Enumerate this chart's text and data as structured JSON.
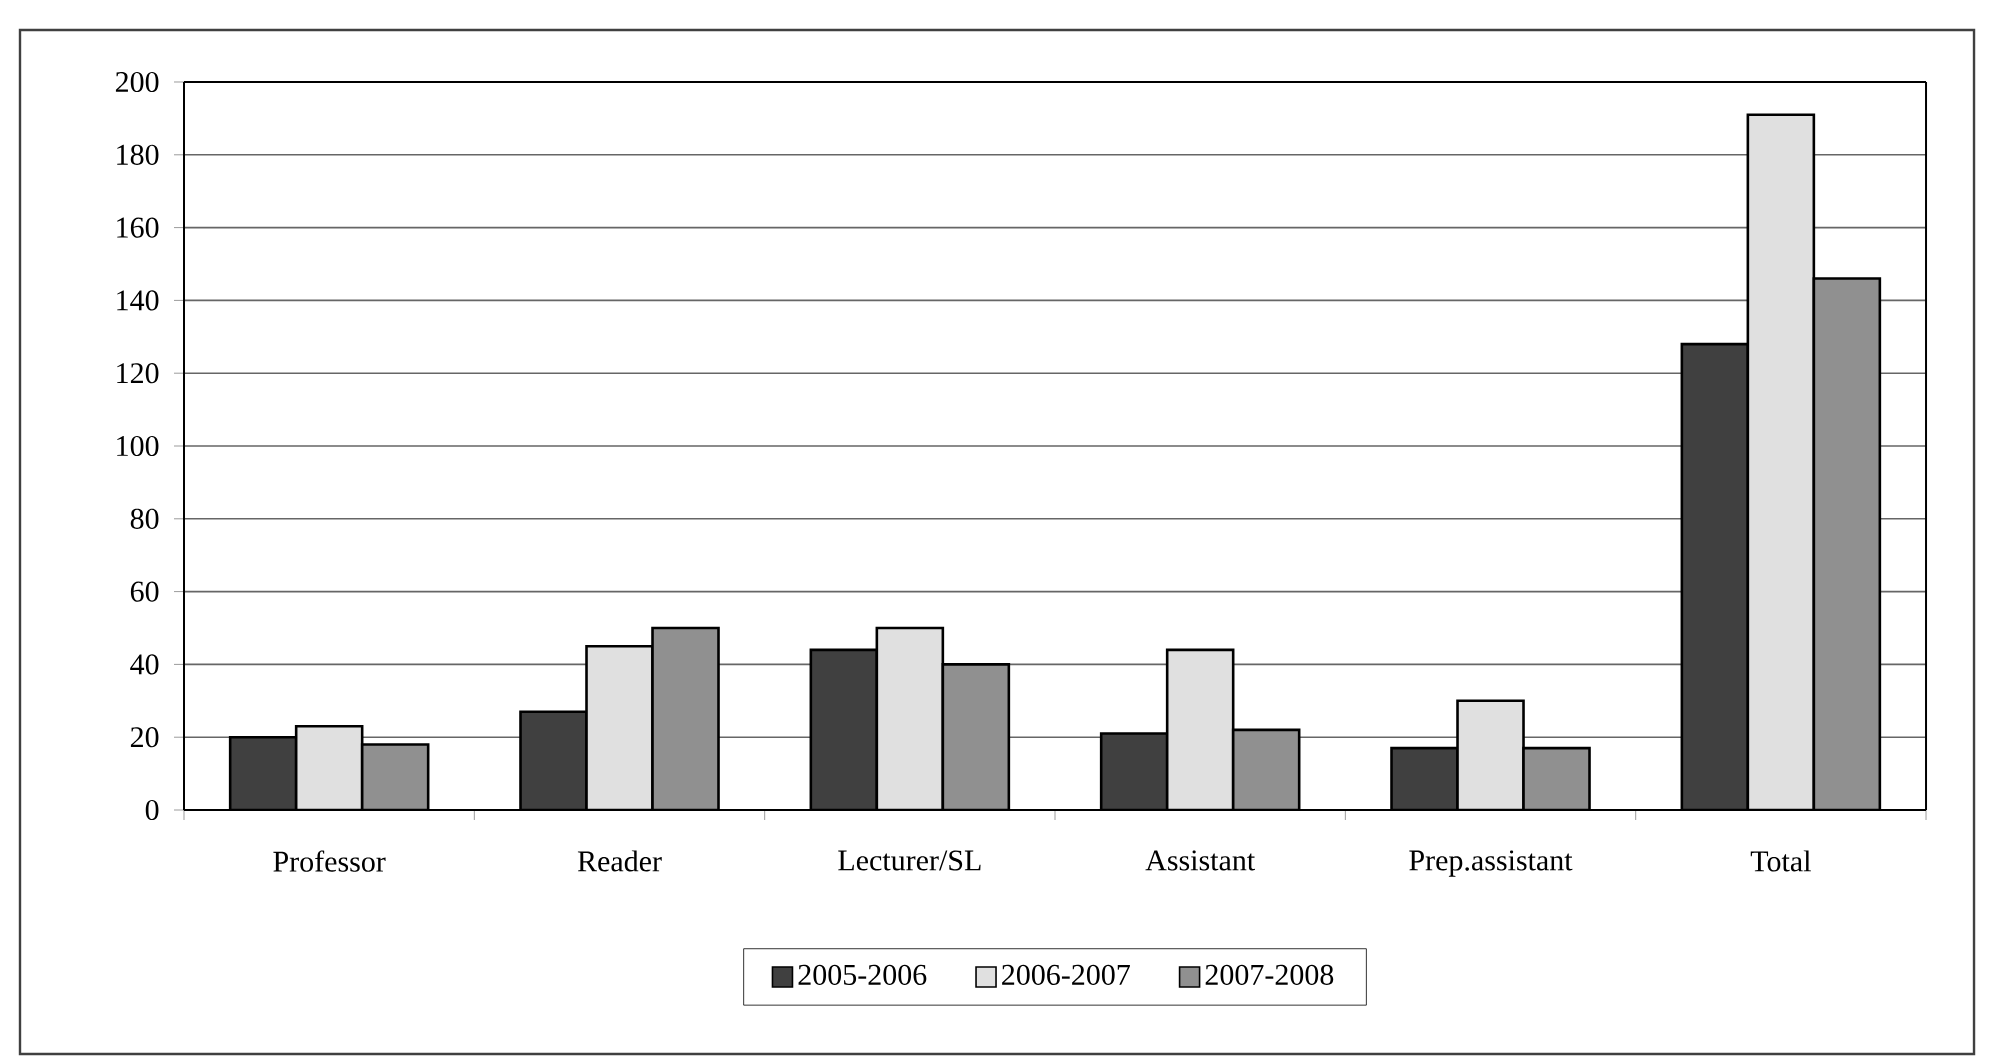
{
  "chart_data": {
    "type": "bar",
    "categories": [
      "Professor",
      "Reader",
      "Lecturer/SL",
      "Assistant",
      "Prep.assistant",
      "Total"
    ],
    "series": [
      {
        "name": "2005-2006",
        "color": "#404040",
        "values": [
          20,
          27,
          44,
          21,
          17,
          128
        ]
      },
      {
        "name": "2006-2007",
        "color": "#e0e0e0",
        "values": [
          23,
          45,
          50,
          44,
          30,
          191
        ]
      },
      {
        "name": "2007-2008",
        "color": "#909090",
        "values": [
          18,
          50,
          40,
          22,
          17,
          146
        ]
      }
    ],
    "ylim": [
      0,
      200
    ],
    "yticks": [
      0,
      20,
      40,
      60,
      80,
      100,
      120,
      140,
      160,
      180,
      200
    ],
    "grid": "y",
    "legend": "bottom"
  }
}
